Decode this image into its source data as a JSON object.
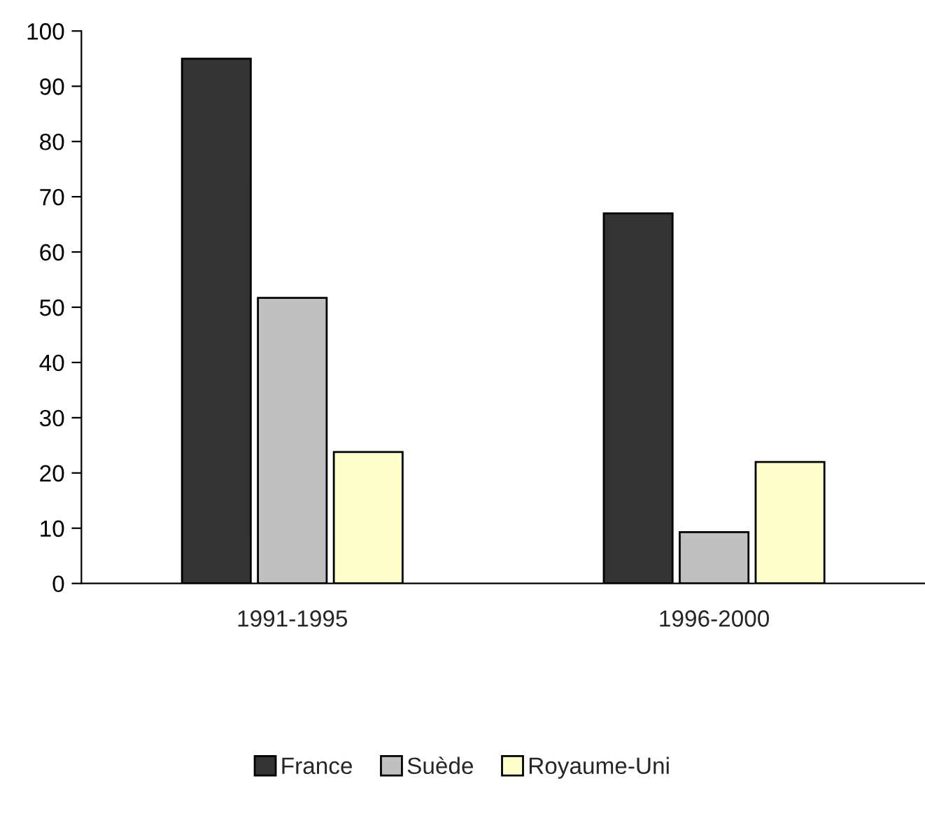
{
  "chart_data": {
    "type": "bar",
    "categories": [
      "1991-1995",
      "1996-2000"
    ],
    "series": [
      {
        "name": "France",
        "color": "#333333",
        "values": [
          95,
          67
        ]
      },
      {
        "name": "Suède",
        "color": "#c0c0c0",
        "values": [
          51.7,
          9.3
        ]
      },
      {
        "name": "Royaume-Uni",
        "color": "#ffffcc",
        "values": [
          23.8,
          22
        ]
      }
    ],
    "ylim": [
      0,
      100
    ],
    "yticks": [
      0,
      10,
      20,
      30,
      40,
      50,
      60,
      70,
      80,
      90,
      100
    ],
    "grid": false,
    "legend": "bottom"
  }
}
